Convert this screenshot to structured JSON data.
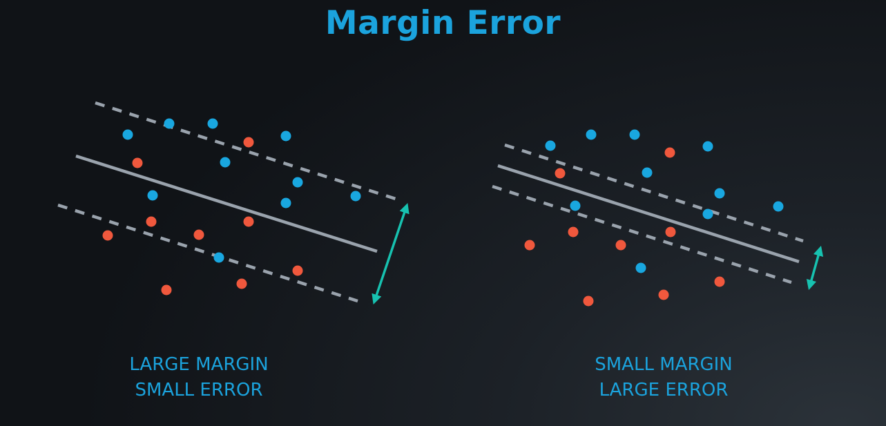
{
  "title": "Margin Error",
  "colors": {
    "blue_point": "#19a7e0",
    "red_point": "#f0583d",
    "boundary_line": "#9aa3ad",
    "margin_arrow": "#17c2b0",
    "title": "#1ba3dd"
  },
  "panels": [
    {
      "id": "large-margin",
      "caption_line1": "LARGE MARGIN",
      "caption_line2": "SMALL ERROR",
      "margin_size": "large",
      "misclassified_points": 1
    },
    {
      "id": "small-margin",
      "caption_line1": "SMALL MARGIN",
      "caption_line2": "LARGE ERROR",
      "margin_size": "small",
      "misclassified_points": 3
    }
  ]
}
